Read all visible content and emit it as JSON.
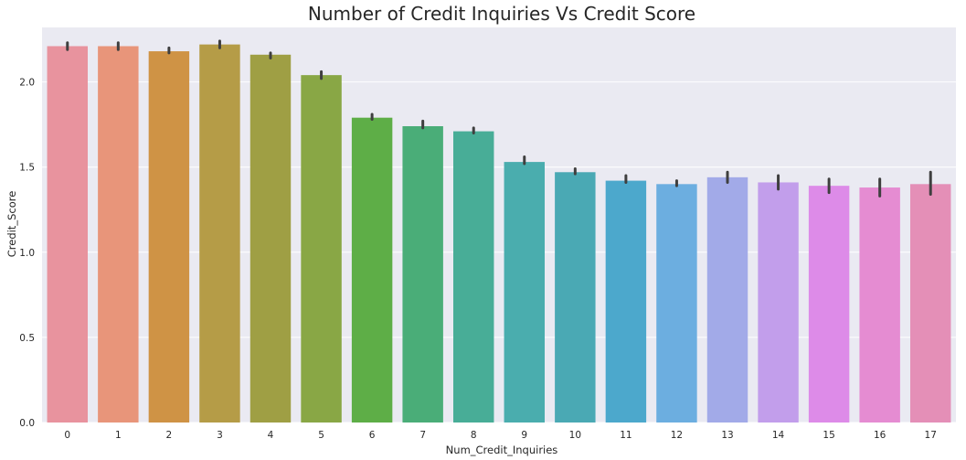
{
  "chart_data": {
    "type": "bar",
    "title": "Number of Credit Inquiries Vs Credit Score",
    "xlabel": "Num_Credit_Inquiries",
    "ylabel": "Credit_Score",
    "categories": [
      "0",
      "1",
      "2",
      "3",
      "4",
      "5",
      "6",
      "7",
      "8",
      "9",
      "10",
      "11",
      "12",
      "13",
      "14",
      "15",
      "16",
      "17"
    ],
    "values": [
      2.21,
      2.21,
      2.18,
      2.22,
      2.16,
      2.04,
      1.79,
      1.74,
      1.71,
      1.53,
      1.47,
      1.42,
      1.4,
      1.44,
      1.41,
      1.39,
      1.38,
      1.4
    ],
    "error_low": [
      2.19,
      2.19,
      2.17,
      2.2,
      2.14,
      2.02,
      1.78,
      1.73,
      1.7,
      1.52,
      1.46,
      1.41,
      1.39,
      1.41,
      1.37,
      1.35,
      1.33,
      1.34
    ],
    "error_high": [
      2.23,
      2.23,
      2.2,
      2.24,
      2.17,
      2.06,
      1.81,
      1.77,
      1.73,
      1.56,
      1.49,
      1.45,
      1.42,
      1.47,
      1.45,
      1.43,
      1.43,
      1.47
    ],
    "colors": [
      "#e8939e",
      "#e8957a",
      "#cf9345",
      "#b59c47",
      "#9f9f44",
      "#89a745",
      "#5eae47",
      "#4aad78",
      "#48ad97",
      "#4aadae",
      "#4aa9b4",
      "#4ca8cc",
      "#6caee0",
      "#a2aae8",
      "#c29eeb",
      "#dd8be8",
      "#e58cd2",
      "#e48fb7"
    ],
    "ylim": [
      0,
      2.32
    ],
    "yticks": [
      "0.0",
      "0.5",
      "1.0",
      "1.5",
      "2.0"
    ],
    "grid": true,
    "background": "#eaeaf2",
    "errorbar_color": "#3f3f3f"
  }
}
